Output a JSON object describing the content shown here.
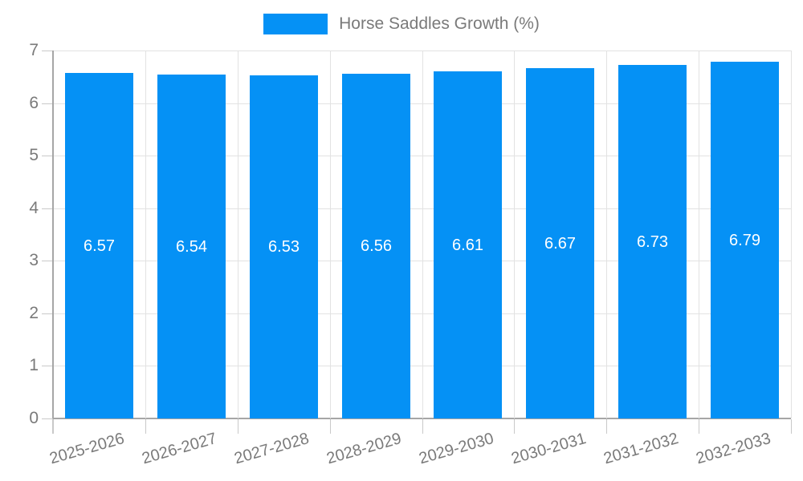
{
  "legend": {
    "label": "Horse Saddles Growth (%)"
  },
  "colors": {
    "bar": "#0591F5",
    "grid": "#e2e2e2",
    "tick": "#c9c9c9",
    "axis": "#a6a6a6",
    "text": "#7a7a7a",
    "value_label": "#ffffff",
    "background": "#ffffff"
  },
  "chart_data": {
    "type": "bar",
    "title": "Horse Saddles Growth (%)",
    "categories": [
      "2025-2026",
      "2026-2027",
      "2027-2028",
      "2028-2029",
      "2029-2030",
      "2030-2031",
      "2031-2032",
      "2032-2033"
    ],
    "values": [
      6.57,
      6.54,
      6.53,
      6.56,
      6.61,
      6.67,
      6.73,
      6.79
    ],
    "value_labels": [
      "6.57",
      "6.54",
      "6.53",
      "6.56",
      "6.61",
      "6.67",
      "6.73",
      "6.79"
    ],
    "xlabel": "",
    "ylabel": "",
    "ylim": [
      0,
      7
    ],
    "y_ticks": [
      0,
      1,
      2,
      3,
      4,
      5,
      6,
      7
    ],
    "grid": "on",
    "legend_position": "top",
    "value_labels_inside_bars": true
  }
}
